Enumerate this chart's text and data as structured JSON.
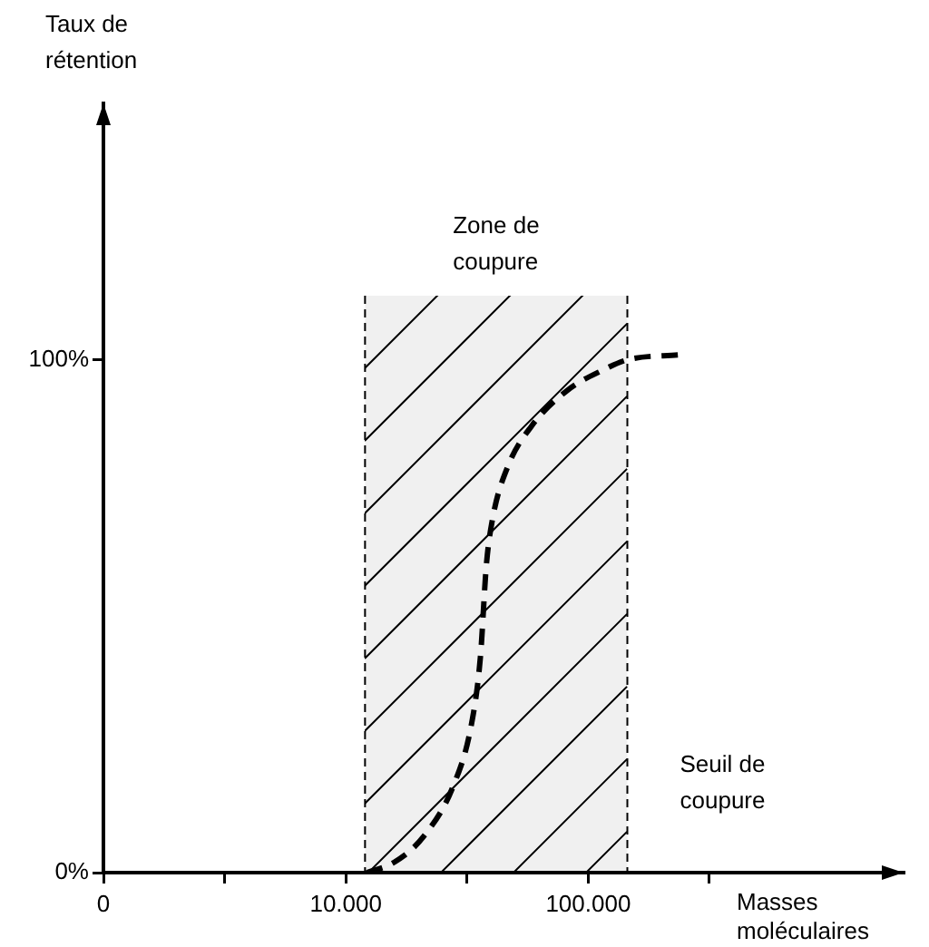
{
  "chart_data": {
    "type": "line",
    "xlabel": "Masses moléculaires",
    "ylabel": "Taux de rétention",
    "log": "x",
    "x": [
      12200,
      15800,
      20900,
      27800,
      33000,
      35900,
      38000,
      40300,
      46400,
      58200,
      81800,
      115000,
      145000,
      241000
    ],
    "series": [
      {
        "color": "#000000",
        "values": [
          0,
          2,
          7,
          17,
          29,
          42,
          60,
          69,
          79,
          87,
          94,
          98,
          100,
          101
        ]
      }
    ],
    "xlim": [
      0,
      2000000
    ],
    "xticks": [
      {
        "value": 0,
        "label": "0"
      },
      {
        "value": 3162,
        "label": null
      },
      {
        "value": 10000,
        "label": "10.000"
      },
      {
        "value": 31623,
        "label": null
      },
      {
        "value": 100000,
        "label": "100.000"
      },
      {
        "value": 316228,
        "label": null
      }
    ],
    "ylim": [
      0,
      150
    ],
    "yticks": [
      {
        "value": 0,
        "label": "0%"
      },
      {
        "value": 100,
        "label": "100%"
      }
    ],
    "bands": [
      {
        "axis": "x",
        "from": 12000,
        "to": 145000,
        "label": "Zone de coupure",
        "color": "#000000"
      }
    ],
    "ref_lines": [
      {
        "axis": "x",
        "value": 12000,
        "line_style": "dashed"
      },
      {
        "axis": "x",
        "value": 145000,
        "label": "Seuil de coupure",
        "line_style": "dashed"
      }
    ],
    "line_style": "dashed",
    "marker": "none",
    "grid": false,
    "legend": false
  }
}
